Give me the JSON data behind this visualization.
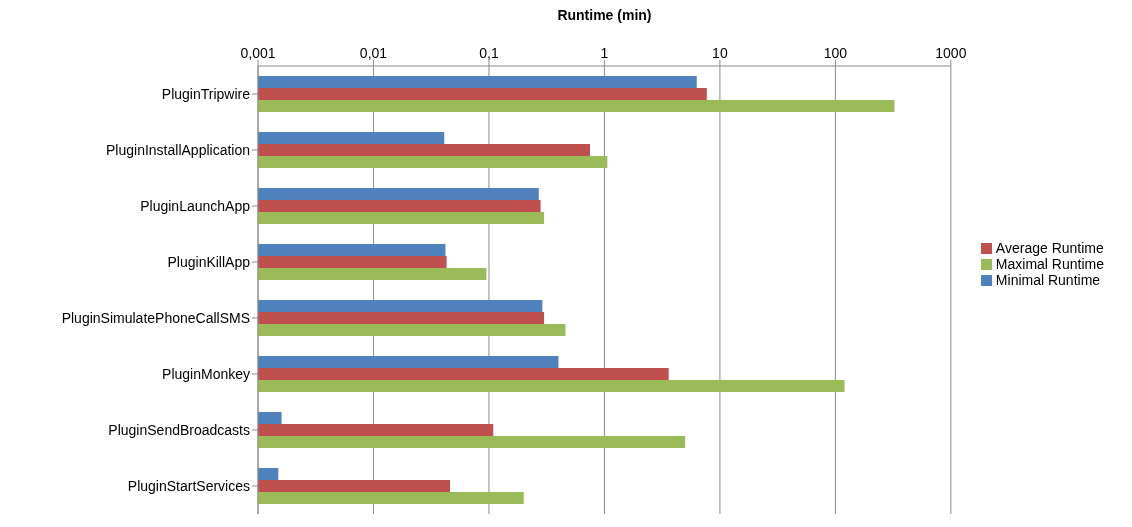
{
  "chart_data": {
    "type": "bar",
    "orientation": "horizontal",
    "xlabel": "Runtime (min)",
    "log": "x",
    "categories": [
      "PluginTripwire",
      "PluginInstallApplication",
      "PluginLaunchApp",
      "PluginKillApp",
      "PluginSimulatePhoneCallSMS",
      "PluginMonkey",
      "PluginSendBroadcasts",
      "PluginStartServices"
    ],
    "series": [
      {
        "name": "Minimal Runtime",
        "color": "#4f81bd",
        "values": [
          6.3,
          0.041,
          0.27,
          0.042,
          0.29,
          0.4,
          0.0016,
          0.0015
        ]
      },
      {
        "name": "Average Runtime",
        "color": "#c0504d",
        "values": [
          7.7,
          0.75,
          0.28,
          0.043,
          0.3,
          3.6,
          0.109,
          0.046
        ]
      },
      {
        "name": "Maximal Runtime",
        "color": "#9bbb59",
        "values": [
          325,
          1.06,
          0.3,
          0.095,
          0.46,
          120,
          5.0,
          0.2
        ]
      }
    ],
    "xlim": [
      0.001,
      1000
    ],
    "xticks": [
      {
        "value": 0.001,
        "label": "0,001"
      },
      {
        "value": 0.01,
        "label": "0,01"
      },
      {
        "value": 0.1,
        "label": "0,1"
      },
      1,
      10,
      100,
      1000
    ],
    "grid": "x",
    "legend": "right"
  }
}
